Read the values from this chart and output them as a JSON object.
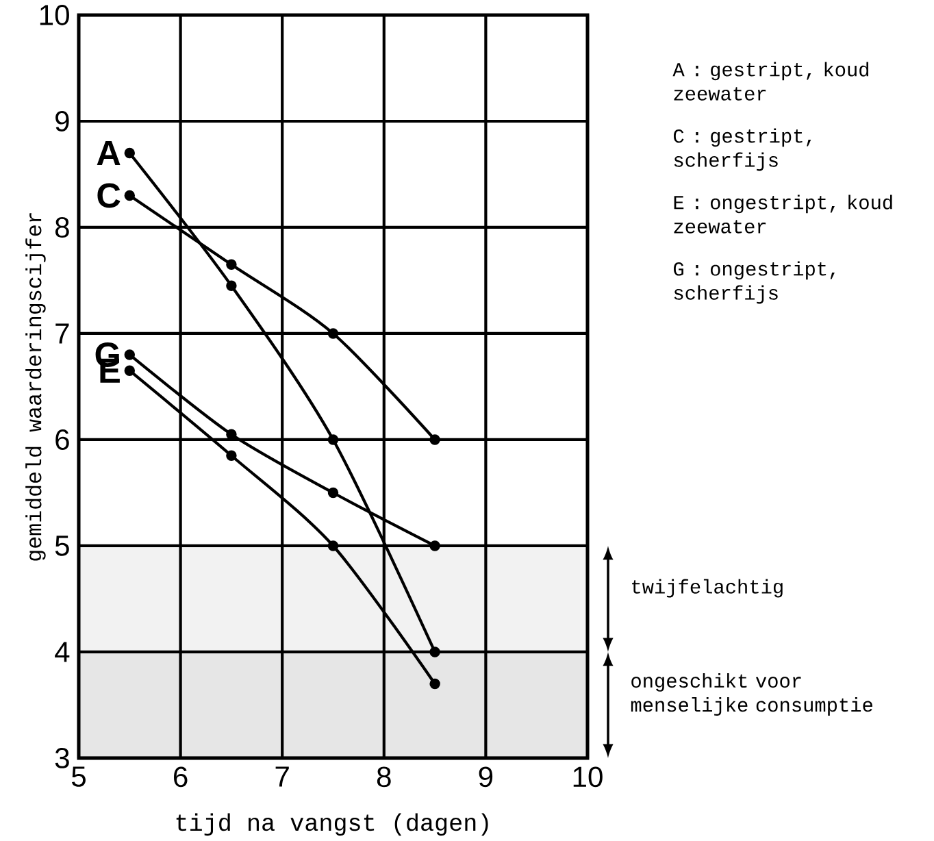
{
  "chart_data": {
    "type": "line",
    "xlabel": "tijd na vangst (dagen)",
    "ylabel": "gemiddeld waarderingscijfer",
    "x": [
      5.5,
      6.5,
      7.5,
      8.5
    ],
    "series": [
      {
        "name": "A",
        "color": "#000000",
        "values": [
          8.7,
          7.45,
          6.0,
          4.0
        ]
      },
      {
        "name": "C",
        "color": "#000000",
        "values": [
          8.3,
          7.65,
          7.0,
          6.0
        ]
      },
      {
        "name": "G",
        "color": "#000000",
        "values": [
          6.8,
          6.05,
          5.5,
          5.0
        ]
      },
      {
        "name": "E",
        "color": "#000000",
        "values": [
          6.65,
          5.85,
          5.0,
          3.7
        ]
      }
    ],
    "xlim": [
      5,
      10
    ],
    "ylim": [
      3,
      10
    ],
    "xticks": [
      5,
      6,
      7,
      8,
      9,
      10
    ],
    "yticks": [
      3,
      4,
      5,
      6,
      7,
      8,
      9,
      10
    ],
    "grid": true,
    "marker": "circle",
    "line_style": "solid",
    "bands": [
      {
        "axis": "y",
        "from": 4,
        "to": 5,
        "label": "twijfelachtig",
        "color": "#f2f2f2"
      },
      {
        "axis": "y",
        "from": 3,
        "to": 4,
        "label": "ongeschikt voor menselijke consumptie",
        "color": "#e6e6e6"
      }
    ],
    "annotations": [
      "A : gestript, koud zeewater",
      "C : gestript, scherfijs",
      "E : ongestript, koud zeewater",
      "G : ongestript, scherfijs"
    ]
  }
}
